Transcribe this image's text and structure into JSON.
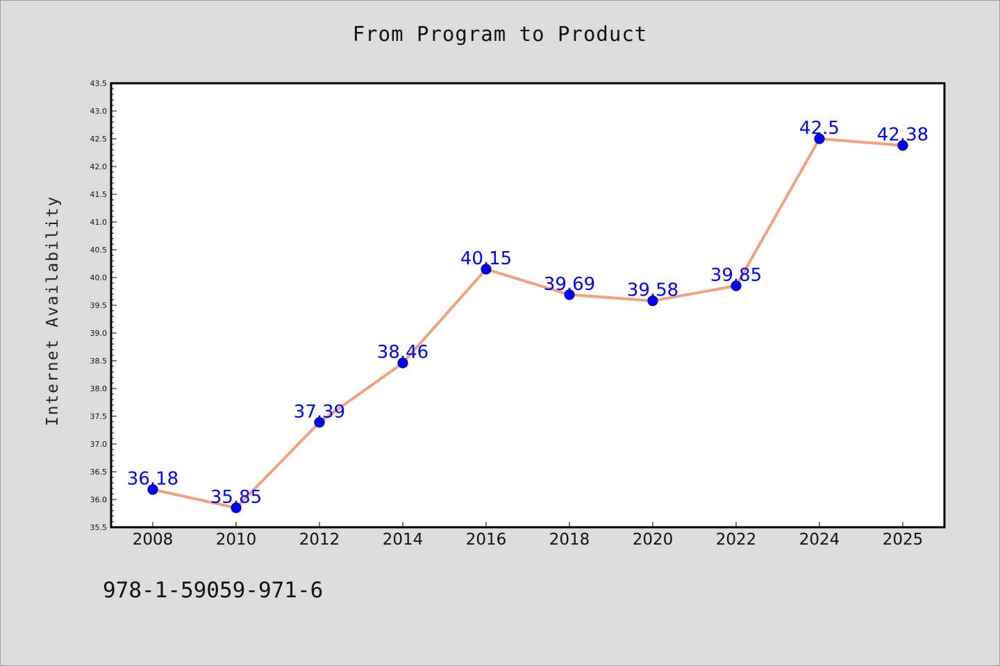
{
  "chart_data": {
    "type": "line",
    "title": "From Program to Product",
    "xlabel": "",
    "ylabel": "Internet Availability",
    "categories": [
      "2008",
      "2010",
      "2012",
      "2014",
      "2016",
      "2018",
      "2020",
      "2022",
      "2024",
      "2025"
    ],
    "series": [
      {
        "values": [
          36.18,
          35.85,
          37.39,
          38.46,
          40.15,
          39.69,
          39.58,
          39.85,
          42.5,
          42.38
        ]
      }
    ],
    "data_labels": [
      "36.18",
      "35.85",
      "37.39",
      "38.46",
      "40.15",
      "39.69",
      "39.58",
      "39.85",
      "42.5",
      "42.38"
    ],
    "ylim": [
      35.5,
      43.5
    ],
    "y_ticks": [
      "35.5",
      "36.0",
      "36.5",
      "37.0",
      "37.5",
      "38.0",
      "38.5",
      "39.0",
      "39.5",
      "40.0",
      "40.5",
      "41.0",
      "41.5",
      "42.0",
      "42.5",
      "43.0",
      "43.5"
    ],
    "grid": false,
    "legend": "none",
    "colors": {
      "line": "#f4a07e",
      "marker": "#0000ff",
      "marker_edge": "#000080",
      "data_label": "#0000ff",
      "background": "#dcdcdc",
      "plot_background": "#ffffff"
    }
  },
  "footer": {
    "isbn": "978-1-59059-971-6"
  }
}
